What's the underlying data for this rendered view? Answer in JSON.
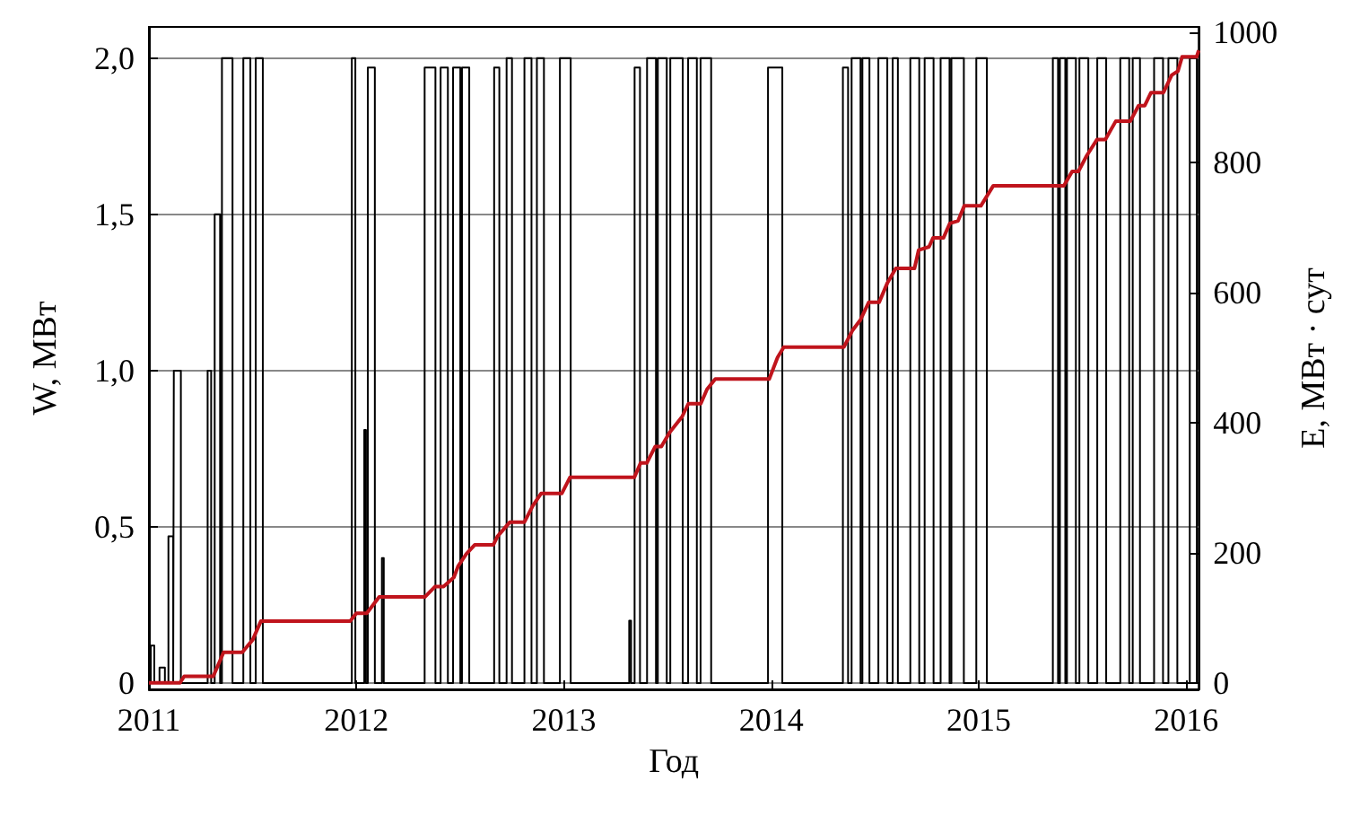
{
  "chart_data": {
    "type": "line",
    "xlabel": "Год",
    "ylabel": "W, МВт",
    "y2label": "E, МВт · сут",
    "xlim": [
      2011,
      2016.06
    ],
    "xticks": [
      2011,
      2012,
      2013,
      2014,
      2015,
      2016
    ],
    "ylim": [
      -0.02,
      2.1
    ],
    "yticks": [
      {
        "value": 0,
        "label": "0"
      },
      {
        "value": 0.5,
        "label": "0,5"
      },
      {
        "value": 1,
        "label": "1,0"
      },
      {
        "value": 1.5,
        "label": "1,5"
      },
      {
        "value": 2,
        "label": "2,0"
      }
    ],
    "y2lim": [
      -10,
      1008
    ],
    "y2ticks": [
      0,
      200,
      400,
      600,
      800,
      1000
    ],
    "grid": "y",
    "marker": "none",
    "line_style": "solid",
    "series": [
      {
        "color": "#000000",
        "axis": "y",
        "x": [
          2011.0,
          2011.009,
          2011.009,
          2011.026,
          2011.026,
          2011.051,
          2011.051,
          2011.077,
          2011.077,
          2011.094,
          2011.094,
          2011.117,
          2011.117,
          2011.12,
          2011.12,
          2011.154,
          2011.154,
          2011.283,
          2011.283,
          2011.3,
          2011.3,
          2011.317,
          2011.317,
          2011.343,
          2011.343,
          2011.352,
          2011.352,
          2011.403,
          2011.403,
          2011.455,
          2011.455,
          2011.489,
          2011.489,
          2011.515,
          2011.515,
          2011.549,
          2011.549,
          2011.978,
          2011.978,
          2011.995,
          2011.995,
          2012.038,
          2012.038,
          2012.046,
          2012.046,
          2012.055,
          2012.055,
          2012.089,
          2012.089,
          2012.123,
          2012.123,
          2012.132,
          2012.132,
          2012.329,
          2012.329,
          2012.381,
          2012.381,
          2012.406,
          2012.406,
          2012.441,
          2012.441,
          2012.466,
          2012.466,
          2012.501,
          2012.501,
          2012.509,
          2012.509,
          2012.544,
          2012.544,
          2012.664,
          2012.664,
          2012.689,
          2012.689,
          2012.724,
          2012.724,
          2012.75,
          2012.75,
          2012.81,
          2012.81,
          2012.844,
          2012.844,
          2012.87,
          2012.87,
          2012.904,
          2012.904,
          2012.981,
          2012.981,
          2013.033,
          2013.033,
          2013.315,
          2013.315,
          2013.324,
          2013.324,
          2013.341,
          2013.341,
          2013.367,
          2013.367,
          2013.401,
          2013.401,
          2013.444,
          2013.444,
          2013.453,
          2013.453,
          2013.496,
          2013.496,
          2013.513,
          2013.513,
          2013.573,
          2013.573,
          2013.599,
          2013.599,
          2013.641,
          2013.641,
          2013.659,
          2013.659,
          2013.71,
          2013.71,
          2013.984,
          2013.984,
          2014.053,
          2014.053,
          2014.345,
          2014.345,
          2014.37,
          2014.37,
          2014.387,
          2014.387,
          2014.43,
          2014.43,
          2014.439,
          2014.439,
          2014.473,
          2014.473,
          2014.516,
          2014.516,
          2014.559,
          2014.559,
          2014.585,
          2014.585,
          2014.61,
          2014.61,
          2014.67,
          2014.67,
          2014.713,
          2014.713,
          2014.739,
          2014.739,
          2014.782,
          2014.782,
          2014.816,
          2014.816,
          2014.859,
          2014.859,
          2014.868,
          2014.868,
          2014.928,
          2014.928,
          2014.988,
          2014.988,
          2015.039,
          2015.039,
          2015.357,
          2015.357,
          2015.382,
          2015.382,
          2015.391,
          2015.391,
          2015.417,
          2015.417,
          2015.425,
          2015.425,
          2015.468,
          2015.468,
          2015.485,
          2015.485,
          2015.528,
          2015.528,
          2015.571,
          2015.571,
          2015.614,
          2015.614,
          2015.682,
          2015.682,
          2015.725,
          2015.725,
          2015.742,
          2015.742,
          2015.777,
          2015.777,
          2015.845,
          2015.845,
          2015.888,
          2015.888,
          2015.914,
          2015.914,
          2015.957,
          2015.957,
          2016.017,
          2016.017,
          2016.051,
          2016.051
        ],
        "values": [
          0,
          0,
          0.12,
          0.12,
          0,
          0,
          0.05,
          0.05,
          0,
          0,
          0.47,
          0.47,
          0,
          0,
          1.0,
          1.0,
          0,
          0,
          1.0,
          1.0,
          0,
          0,
          1.5,
          1.5,
          0,
          0,
          2.0,
          2.0,
          0,
          0,
          2.0,
          2.0,
          0,
          0,
          2.0,
          2.0,
          0,
          0,
          2.0,
          2.0,
          0,
          0,
          0.81,
          0.81,
          0,
          0,
          1.97,
          1.97,
          0,
          0,
          0.4,
          0.4,
          0,
          0,
          1.97,
          1.97,
          0,
          0,
          1.97,
          1.97,
          0,
          0,
          1.97,
          1.97,
          0,
          0,
          1.97,
          1.97,
          0,
          0,
          1.97,
          1.97,
          0,
          0,
          2.0,
          2.0,
          0,
          0,
          2.0,
          2.0,
          0,
          0,
          2.0,
          2.0,
          0,
          0,
          2.0,
          2.0,
          0,
          0,
          0.2,
          0.2,
          0,
          0,
          1.97,
          1.97,
          0,
          0,
          2.0,
          2.0,
          0,
          0,
          2.0,
          2.0,
          0,
          0,
          2.0,
          2.0,
          0,
          0,
          2.0,
          2.0,
          0,
          0,
          2.0,
          2.0,
          0,
          0,
          1.97,
          1.97,
          0,
          0,
          1.97,
          1.97,
          0,
          0,
          2.0,
          2.0,
          0,
          0,
          2.0,
          2.0,
          0,
          0,
          2.0,
          2.0,
          0,
          0,
          2.0,
          2.0,
          0,
          0,
          2.0,
          2.0,
          0,
          0,
          2.0,
          2.0,
          0,
          0,
          2.0,
          2.0,
          0,
          0,
          2.0,
          2.0,
          0,
          0,
          2.0,
          2.0,
          0,
          0,
          2.0,
          2.0,
          0,
          0,
          2.0,
          2.0,
          0,
          0,
          2.0,
          2.0,
          0,
          0,
          2.0,
          2.0,
          0,
          0,
          2.0,
          2.0,
          0,
          0,
          2.0,
          2.0,
          0,
          0,
          2.0,
          2.0,
          0,
          0,
          2.0,
          2.0,
          0,
          0,
          2.0,
          2.0,
          0,
          0,
          2.0,
          2.0,
          0
        ]
      },
      {
        "color": "#c0141c",
        "axis": "y2",
        "x": [
          2011.0,
          2011.15,
          2011.17,
          2011.31,
          2011.36,
          2011.45,
          2011.5,
          2011.54,
          2011.97,
          2012.0,
          2012.05,
          2012.11,
          2012.33,
          2012.38,
          2012.42,
          2012.47,
          2012.49,
          2012.53,
          2012.57,
          2012.66,
          2012.68,
          2012.74,
          2012.81,
          2012.85,
          2012.89,
          2012.99,
          2013.03,
          2013.34,
          2013.37,
          2013.4,
          2013.44,
          2013.47,
          2013.51,
          2013.57,
          2013.6,
          2013.66,
          2013.69,
          2013.73,
          2013.99,
          2014.03,
          2014.06,
          2014.35,
          2014.39,
          2014.43,
          2014.47,
          2014.52,
          2014.56,
          2014.6,
          2014.69,
          2014.71,
          2014.76,
          2014.78,
          2014.83,
          2014.86,
          2014.9,
          2014.93,
          2015.01,
          2015.07,
          2015.41,
          2015.45,
          2015.48,
          2015.52,
          2015.57,
          2015.61,
          2015.66,
          2015.73,
          2015.77,
          2015.8,
          2015.83,
          2015.89,
          2015.93,
          2015.96,
          2015.98,
          2016.05,
          2016.06
        ],
        "values": [
          0,
          0,
          10,
          10,
          47,
          47,
          66,
          95,
          95,
          107,
          107,
          132,
          132,
          148,
          148,
          162,
          179,
          198,
          212,
          212,
          225,
          247,
          247,
          272,
          291,
          291,
          316,
          316,
          338,
          338,
          363,
          363,
          385,
          409,
          429,
          429,
          451,
          467,
          467,
          500,
          516,
          516,
          541,
          558,
          585,
          585,
          615,
          637,
          637,
          665,
          670,
          684,
          684,
          706,
          710,
          733,
          733,
          764,
          764,
          786,
          786,
          810,
          835,
          835,
          863,
          863,
          887,
          887,
          907,
          907,
          934,
          940,
          962,
          962,
          972
        ]
      }
    ]
  }
}
